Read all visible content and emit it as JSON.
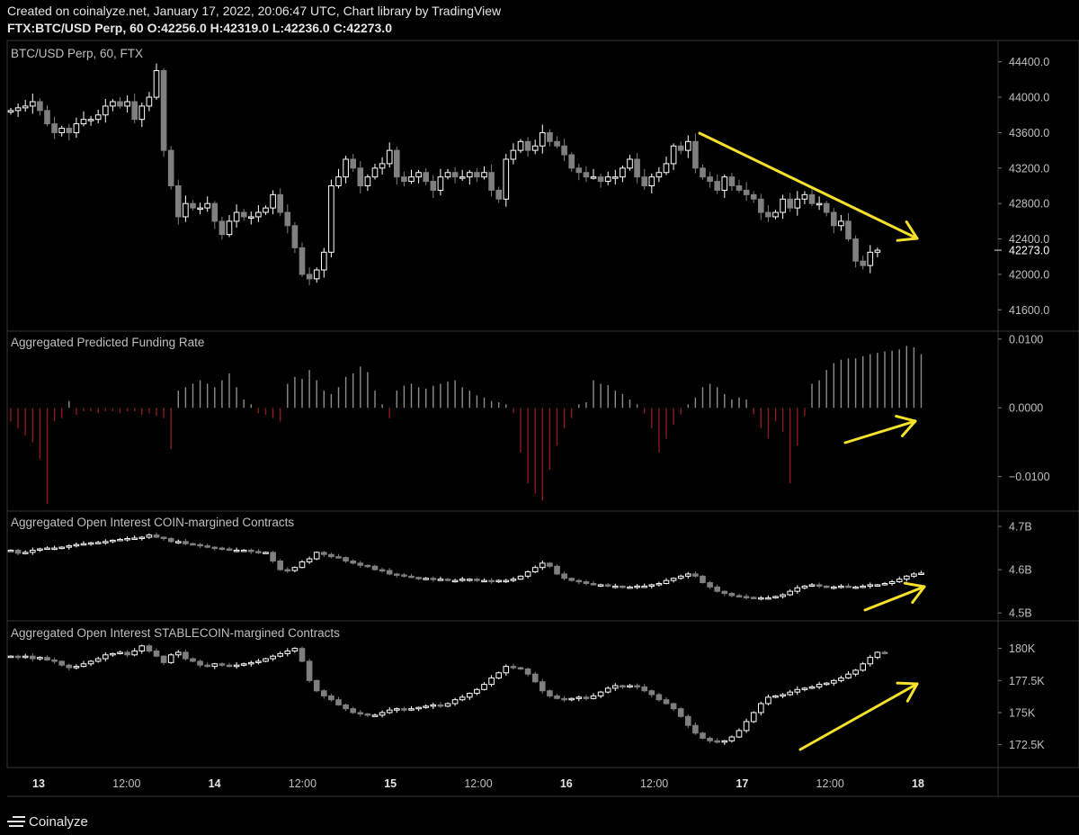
{
  "header": {
    "line1": "Created on coinalyze.net, January 17, 2022, 20:06:47 UTC, Chart library by TradingView",
    "line2": "FTX:BTC/USD Perp, 60 O:42256.0 H:42319.0 L:42236.0 C:42273.0"
  },
  "footer": {
    "brand": "Coinalyze",
    "logo_icon": "coinalyze-logo-icon"
  },
  "colors": {
    "background": "#000000",
    "up": "#ffffff",
    "down": "#7f7f7f",
    "funding_pos": "#8c8c8c",
    "funding_neg": "#8b1a1a",
    "annotation": "#f5e12a",
    "grid": "#333333"
  },
  "chart_data": [
    {
      "type": "candlestick",
      "title": "BTC/USD Perp, 60, FTX",
      "ylim": [
        41400,
        44600
      ],
      "yticks": [
        41600,
        42000,
        42400,
        42800,
        43200,
        43600,
        44000,
        44400
      ],
      "ytick_labels": [
        "41600.0",
        "42000.0",
        "42400.0",
        "42800.0",
        "43200.0",
        "43600.0",
        "44000.0",
        "44400.0"
      ],
      "last_price_label": "42273.0",
      "x_labels": [
        "13",
        "12:00",
        "14",
        "12:00",
        "15",
        "12:00",
        "16",
        "12:00",
        "17",
        "12:00",
        "18"
      ],
      "close": [
        43850,
        43880,
        43900,
        43950,
        43850,
        43700,
        43600,
        43650,
        43600,
        43700,
        43750,
        43750,
        43800,
        43900,
        43950,
        43900,
        43950,
        43750,
        43900,
        44000,
        44300,
        43400,
        43000,
        42650,
        42800,
        42750,
        42750,
        42800,
        42600,
        42450,
        42600,
        42700,
        42650,
        42650,
        42700,
        42750,
        42900,
        42700,
        42550,
        42300,
        42000,
        41950,
        42050,
        42250,
        43000,
        43100,
        43300,
        43200,
        43000,
        43100,
        43200,
        43250,
        43400,
        43100,
        43050,
        43100,
        43150,
        43050,
        42950,
        43100,
        43150,
        43100,
        43100,
        43150,
        43100,
        43150,
        42950,
        42850,
        43300,
        43400,
        43500,
        43400,
        43450,
        43600,
        43500,
        43450,
        43350,
        43200,
        43150,
        43100,
        43100,
        43050,
        43100,
        43100,
        43200,
        43300,
        43100,
        43000,
        43100,
        43150,
        43250,
        43450,
        43400,
        43500,
        43200,
        43100,
        43050,
        42950,
        43100,
        43000,
        42950,
        42900,
        42850,
        42700,
        42650,
        42700,
        42850,
        42750,
        42850,
        42900,
        42800,
        42800,
        42700,
        42550,
        42600,
        42400,
        42150,
        42100,
        42250,
        42273
      ],
      "annotation": "yellow-downtrend-arrow"
    },
    {
      "type": "bar",
      "title": "Aggregated Predicted Funding Rate",
      "ylim": [
        -0.0145,
        0.0105
      ],
      "yticks": [
        -0.01,
        0,
        0.01
      ],
      "ytick_labels": [
        "−0.0100",
        "0.0000",
        "0.0100"
      ],
      "values": [
        -0.002,
        -0.003,
        -0.004,
        -0.005,
        -0.0075,
        -0.014,
        -0.002,
        -0.0015,
        0.001,
        -0.001,
        -0.0005,
        -0.0005,
        -0.0008,
        -0.0005,
        -0.0005,
        -0.0008,
        -0.0005,
        -0.0005,
        -0.001,
        -0.0008,
        -0.0012,
        -0.0015,
        -0.006,
        0.0025,
        0.003,
        0.0035,
        0.004,
        0.0035,
        0.003,
        0.004,
        0.005,
        0.003,
        0.0012,
        0.0005,
        -0.0008,
        -0.001,
        -0.0015,
        -0.002,
        0.0035,
        0.0045,
        0.0042,
        0.0055,
        0.004,
        0.0025,
        0.002,
        0.003,
        0.0045,
        0.005,
        0.006,
        0.0052,
        0.0025,
        0.0005,
        -0.0015,
        0.0025,
        0.0032,
        0.0035,
        0.003,
        0.0028,
        0.0032,
        0.0035,
        0.0038,
        0.004,
        0.003,
        0.0025,
        0.0018,
        0.0015,
        0.001,
        0.0008,
        0.0005,
        -0.0008,
        -0.0065,
        -0.011,
        -0.0125,
        -0.0135,
        -0.009,
        -0.0055,
        -0.003,
        -0.0015,
        0.0005,
        0.0008,
        0.004,
        0.0035,
        0.0033,
        0.0025,
        0.002,
        0.0012,
        0.0005,
        -0.0008,
        -0.003,
        -0.0065,
        -0.0045,
        -0.0025,
        -0.001,
        0.0005,
        0.0015,
        0.003,
        0.0035,
        0.003,
        0.002,
        0.0012,
        0.0015,
        0.0012,
        -0.001,
        -0.003,
        -0.0045,
        -0.002,
        -0.0035,
        -0.011,
        -0.0055,
        -0.0012,
        0.0035,
        0.004,
        0.0055,
        0.0065,
        0.007,
        0.0072,
        0.0072,
        0.0075,
        0.0078,
        0.008,
        0.0082,
        0.0083,
        0.0085,
        0.009,
        0.0088,
        0.0078
      ],
      "annotation": "yellow-uptrend-arrow"
    },
    {
      "type": "candlestick",
      "title": "Aggregated Open Interest COIN-margined Contracts",
      "ylim": [
        4.49,
        4.725
      ],
      "yticks": [
        4.5,
        4.6,
        4.7
      ],
      "ytick_labels": [
        "4.5B",
        "4.6B",
        "4.7B"
      ],
      "close": [
        4.645,
        4.638,
        4.64,
        4.645,
        4.648,
        4.65,
        4.65,
        4.652,
        4.655,
        4.658,
        4.66,
        4.662,
        4.663,
        4.665,
        4.668,
        4.67,
        4.672,
        4.673,
        4.675,
        4.68,
        4.675,
        4.672,
        4.665,
        4.665,
        4.66,
        4.658,
        4.655,
        4.652,
        4.65,
        4.648,
        4.645,
        4.645,
        4.645,
        4.642,
        4.64,
        4.64,
        4.62,
        4.6,
        4.598,
        4.605,
        4.618,
        4.625,
        4.64,
        4.635,
        4.63,
        4.628,
        4.62,
        4.615,
        4.61,
        4.608,
        4.6,
        4.598,
        4.59,
        4.588,
        4.585,
        4.582,
        4.58,
        4.58,
        4.578,
        4.578,
        4.575,
        4.575,
        4.578,
        4.578,
        4.575,
        4.575,
        4.572,
        4.575,
        4.575,
        4.578,
        4.585,
        4.595,
        4.605,
        4.615,
        4.608,
        4.59,
        4.58,
        4.575,
        4.572,
        4.568,
        4.565,
        4.565,
        4.562,
        4.562,
        4.56,
        4.56,
        4.562,
        4.562,
        4.565,
        4.568,
        4.575,
        4.58,
        4.585,
        4.59,
        4.585,
        4.57,
        4.56,
        4.55,
        4.545,
        4.54,
        4.538,
        4.536,
        4.535,
        4.535,
        4.535,
        4.538,
        4.542,
        4.55,
        4.558,
        4.562,
        4.565,
        4.562,
        4.56,
        4.56,
        4.562,
        4.56,
        4.56,
        4.562,
        4.565,
        4.565,
        4.568,
        4.572,
        4.578,
        4.585,
        4.59,
        4.592
      ],
      "annotation": "yellow-uptrend-arrow"
    },
    {
      "type": "candlestick",
      "title": "Aggregated Open Interest STABLECOIN-margined Contracts",
      "ylim": [
        171000,
        181800
      ],
      "yticks": [
        172500,
        175000,
        177500,
        180000
      ],
      "ytick_labels": [
        "172.5K",
        "175K",
        "177.5K",
        "180K"
      ],
      "close": [
        179400,
        179300,
        179400,
        179200,
        179300,
        179100,
        179000,
        178700,
        178500,
        178600,
        178800,
        179000,
        179200,
        179500,
        179600,
        179700,
        179500,
        179800,
        180200,
        179800,
        179400,
        178900,
        179500,
        179700,
        179200,
        179000,
        178700,
        178600,
        178800,
        178700,
        178600,
        178700,
        178800,
        178900,
        179000,
        179200,
        179400,
        179600,
        179800,
        180000,
        179000,
        177500,
        176700,
        176300,
        176000,
        175600,
        175300,
        175000,
        174900,
        174800,
        174800,
        175000,
        175200,
        175300,
        175200,
        175300,
        175400,
        175500,
        175600,
        175500,
        175700,
        176000,
        176200,
        176500,
        176800,
        177200,
        177700,
        178100,
        178600,
        178500,
        178400,
        178000,
        177400,
        176700,
        176300,
        176100,
        176000,
        176100,
        176200,
        176100,
        176300,
        176600,
        176900,
        177100,
        177000,
        177100,
        177000,
        176700,
        176400,
        176000,
        175700,
        175300,
        174700,
        174000,
        173400,
        173000,
        172800,
        172700,
        172800,
        173100,
        173600,
        174300,
        175000,
        175700,
        176200,
        176300,
        176400,
        176600,
        176800,
        176900,
        177000,
        177200,
        177300,
        177500,
        177700,
        178000,
        178300,
        178800,
        179300,
        179700,
        179600
      ],
      "annotation": "yellow-uptrend-arrow"
    }
  ]
}
